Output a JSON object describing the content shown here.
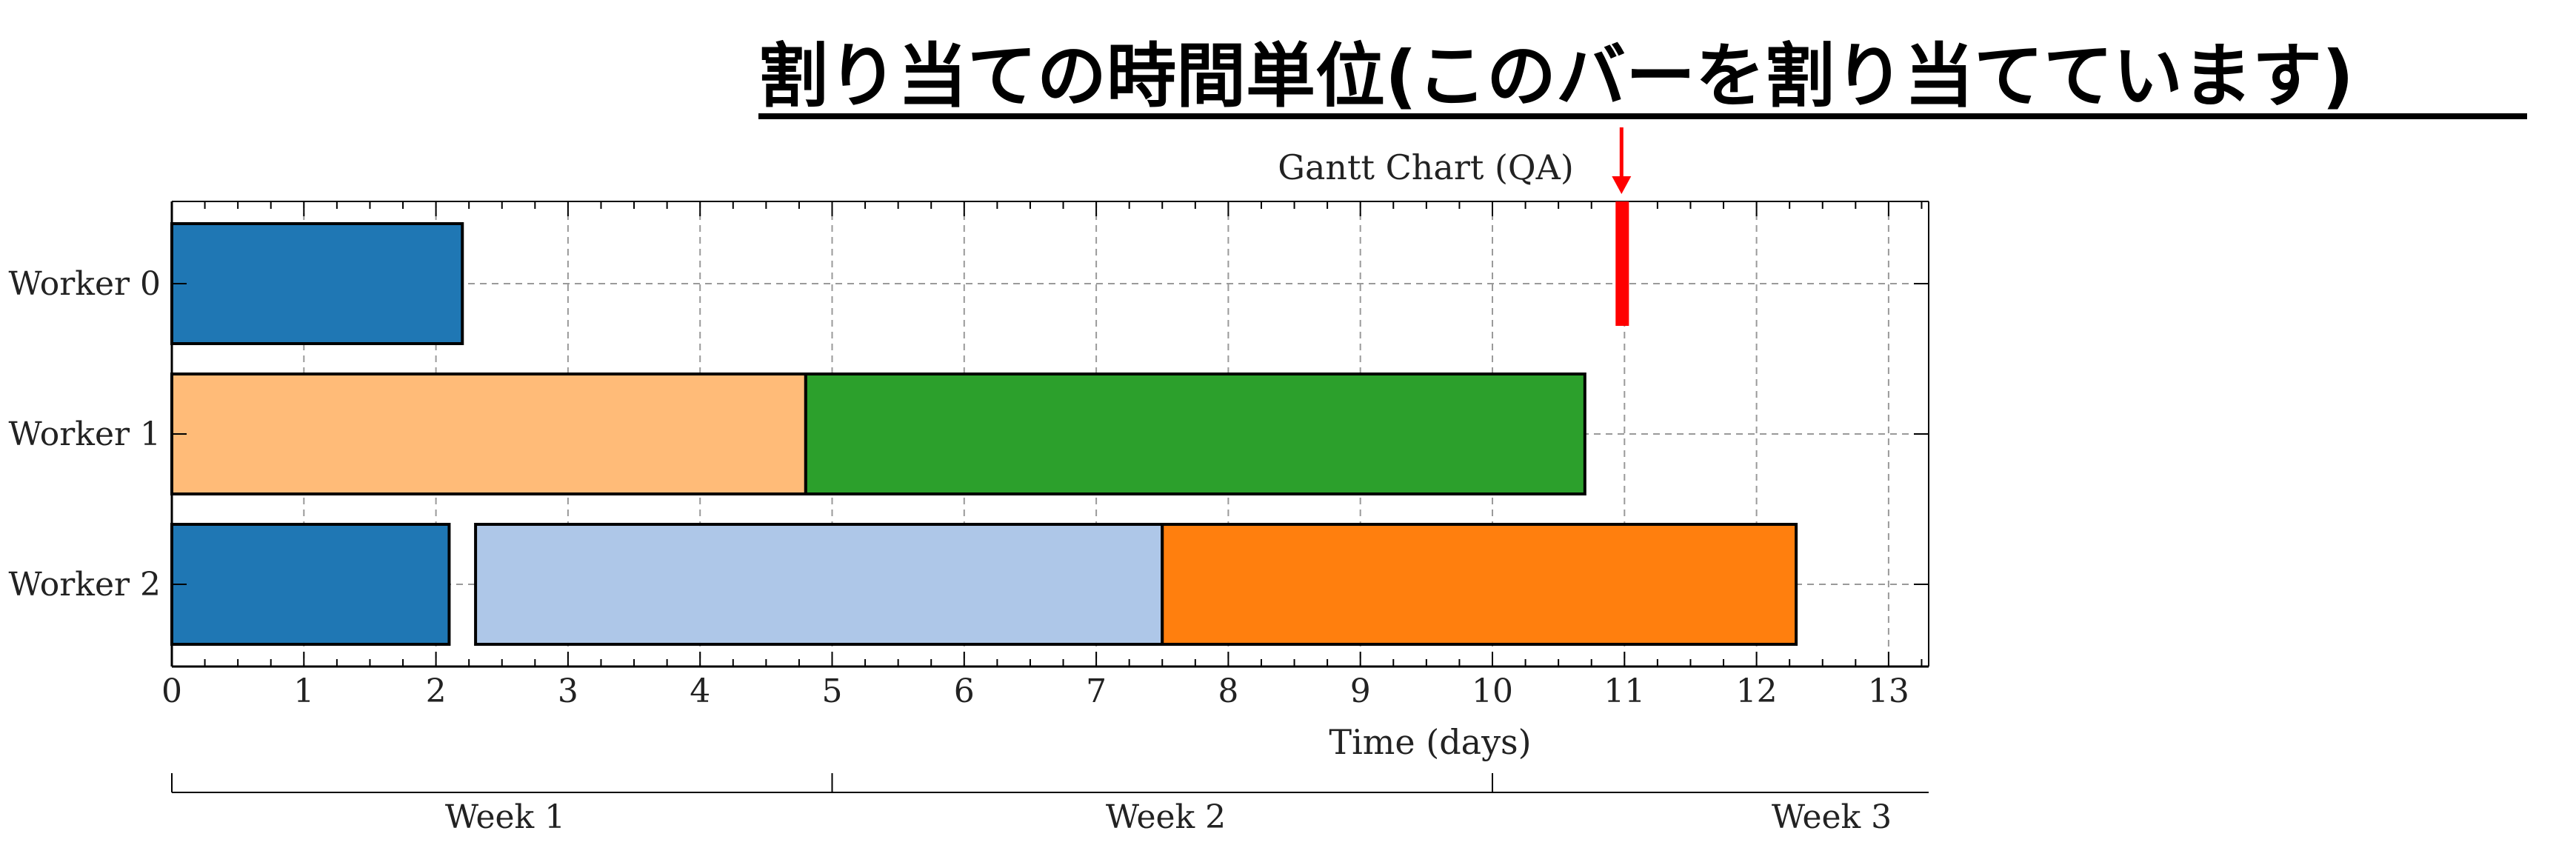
{
  "annotation": {
    "text": "割り当ての時間単位(このバーを割り当てています)",
    "marker_x": 11,
    "marker_color": "#ff0000"
  },
  "chart_data": {
    "type": "gantt",
    "title": "Gantt Chart (QA)",
    "xlabel": "Time (days)",
    "ylabel": "",
    "xlim": [
      0,
      13.3
    ],
    "xticks": [
      0,
      1,
      2,
      3,
      4,
      5,
      6,
      7,
      8,
      9,
      10,
      11,
      12,
      13
    ],
    "grid": true,
    "workers": [
      "Worker 0",
      "Worker 1",
      "Worker 2"
    ],
    "tasks": [
      {
        "worker": "Worker 0",
        "start": 0,
        "end": 2.2,
        "color": "#1f77b4"
      },
      {
        "worker": "Worker 1",
        "start": 0,
        "end": 4.8,
        "color": "#ffbb78"
      },
      {
        "worker": "Worker 1",
        "start": 4.8,
        "end": 10.7,
        "color": "#2ca02c"
      },
      {
        "worker": "Worker 2",
        "start": 0,
        "end": 2.1,
        "color": "#1f77b4"
      },
      {
        "worker": "Worker 2",
        "start": 2.3,
        "end": 7.5,
        "color": "#aec7e8"
      },
      {
        "worker": "Worker 2",
        "start": 7.5,
        "end": 12.3,
        "color": "#ff7f0e"
      }
    ],
    "weeks": {
      "boundaries": [
        0,
        5,
        10
      ],
      "labels": [
        "Week 1",
        "Week 2",
        "Week 3"
      ]
    }
  }
}
